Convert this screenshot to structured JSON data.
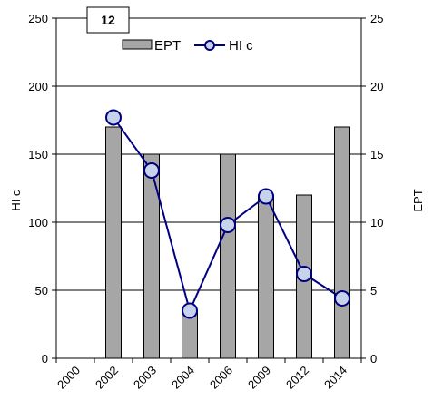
{
  "panel_label": "12",
  "chart_data": {
    "type": "bar+line",
    "categories": [
      "2000",
      "2002",
      "2003",
      "2004",
      "2006",
      "2009",
      "2012",
      "2014"
    ],
    "series": [
      {
        "name": "EPT",
        "type": "bar",
        "axis": "right",
        "values": [
          null,
          17,
          15,
          3.5,
          15,
          12,
          12,
          17
        ],
        "color": "#a6a6a6"
      },
      {
        "name": "HI c",
        "type": "line",
        "axis": "left",
        "values": [
          null,
          177,
          138,
          35,
          98,
          119,
          62,
          44
        ],
        "color": "#000080",
        "marker_fill": "#c7d3ea"
      }
    ],
    "ylabel": "HI c",
    "y2label": "EPT",
    "ylim": [
      0,
      250
    ],
    "y2lim": [
      0,
      25
    ],
    "yticks": [
      0,
      50,
      100,
      150,
      200,
      250
    ],
    "y2ticks": [
      0,
      5,
      10,
      15,
      20,
      25
    ],
    "grid": true,
    "legend_position": "top"
  }
}
